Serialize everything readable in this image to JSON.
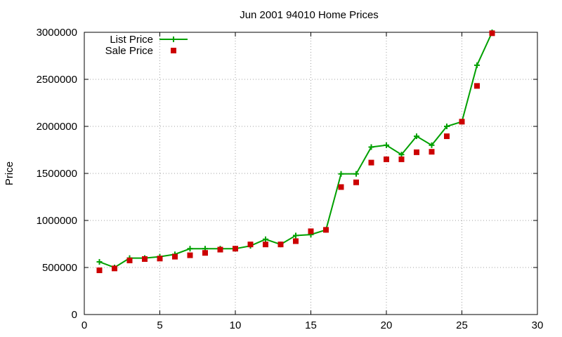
{
  "chart_data": {
    "type": "line",
    "title": "Jun 2001 94010 Home Prices",
    "xlabel": "",
    "ylabel": "Price",
    "xlim": [
      0,
      30
    ],
    "ylim": [
      0,
      3000000
    ],
    "x_ticks": [
      0,
      5,
      10,
      15,
      20,
      25,
      30
    ],
    "y_ticks": [
      0,
      500000,
      1000000,
      1500000,
      2000000,
      2500000,
      3000000
    ],
    "grid": true,
    "legend_position": "top-left",
    "x": [
      1,
      2,
      3,
      4,
      5,
      6,
      7,
      8,
      9,
      10,
      11,
      12,
      13,
      14,
      15,
      16,
      17,
      18,
      19,
      20,
      21,
      22,
      23,
      24,
      25,
      26,
      27
    ],
    "series": [
      {
        "name": "List Price",
        "style": "lines+points",
        "marker": "plus",
        "color": "#00a000",
        "values": [
          560000,
          500000,
          600000,
          600000,
          615000,
          640000,
          700000,
          700000,
          700000,
          700000,
          730000,
          800000,
          745000,
          840000,
          850000,
          900000,
          1495000,
          1495000,
          1780000,
          1800000,
          1700000,
          1895000,
          1800000,
          2000000,
          2050000,
          2650000,
          3000000
        ]
      },
      {
        "name": "Sale Price",
        "style": "points",
        "marker": "square",
        "color": "#cc0000",
        "values": [
          470000,
          490000,
          575000,
          590000,
          595000,
          615000,
          630000,
          655000,
          690000,
          700000,
          745000,
          745000,
          745000,
          780000,
          885000,
          900000,
          1355000,
          1405000,
          1615000,
          1650000,
          1650000,
          1725000,
          1730000,
          1895000,
          2050000,
          2430000,
          2990000
        ]
      }
    ]
  }
}
